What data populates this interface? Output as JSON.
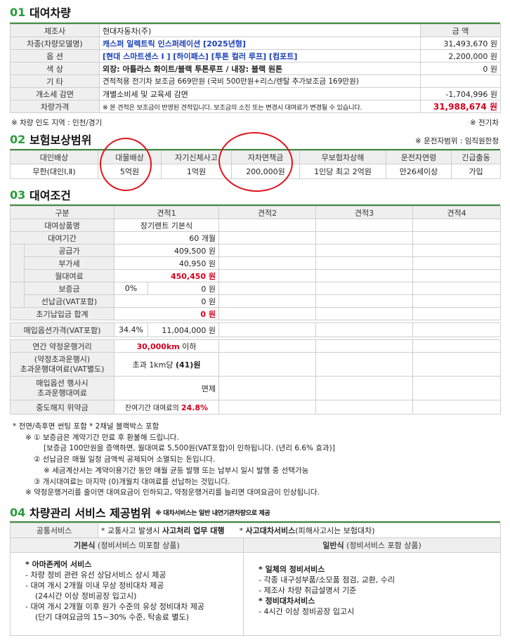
{
  "sec1": {
    "num": "01",
    "title": "대여차량",
    "rows": [
      {
        "label": "제조사",
        "value": "현대자동차(주)",
        "amount": "금 액"
      },
      {
        "label": "차종(차량모델명)",
        "value": "캐스퍼 일렉트릭 인스퍼레이션 [2025년형]",
        "amount": "31,493,670 원"
      },
      {
        "label": "옵 션",
        "value": "[현대 스마트센스 I ] [하이패스] [투톤 컬러 루프] [컴포트]",
        "amount": "2,200,000 원"
      },
      {
        "label": "색 상",
        "value": "외장: 아틀라스 화이트/블랙 투톤루프 / 내장: 블랙 원톤",
        "amount": "0 원"
      },
      {
        "label": "기 타",
        "value": "견적적용 전기차 보조금 669만원 (국비 500만원+리스/렌탈 추가보조금 169만원)",
        "amount": ""
      },
      {
        "label": "개소세 감면",
        "value": "개별소비세 및 교육세 감면",
        "amount": "-1,704,996 원"
      },
      {
        "label": "차량가격",
        "value": "※ 본 견적은 보조금이 반영된 견적입니다. 보조금의 소진 또는 변경시 대여료가 변경될 수 있습니다.",
        "amount": "31,988,674 원"
      }
    ],
    "note_left": "※ 차량 인도 지역 : 인천/경기",
    "note_right": "※ 전기차"
  },
  "sec2": {
    "num": "02",
    "title": "보험보상범위",
    "note_right": "※ 운전자범위 : 임직원한정",
    "headers": [
      "대인배상",
      "대물배상",
      "자기신체사고",
      "자차면책금",
      "무보험차상해",
      "운전자연령",
      "긴급출동"
    ],
    "values": [
      "무한(대인Ⅰ,Ⅱ)",
      "5억원",
      "1억원",
      "200,000원",
      "1인당 최고 2억원",
      "만26세이상",
      "가입"
    ]
  },
  "sec3": {
    "num": "03",
    "title": "대여조건",
    "headers": [
      "구분",
      "견적1",
      "견적2",
      "견적3",
      "견적4"
    ],
    "product_label": "대여상품명",
    "product": "장기렌트 기본식",
    "period_label": "대여기간",
    "period": "60 개월",
    "supply_label": "공급가",
    "supply": "409,500 원",
    "vat_label": "부가세",
    "vat": "40,950 원",
    "monthly_label": "월대여료",
    "monthly": "450,450 원",
    "deposit_label": "보증금",
    "deposit_pct": "0%",
    "deposit": "0 원",
    "prepay_label": "선납금(VAT포함)",
    "prepay": "0 원",
    "initial_label": "초기납입금 합계",
    "initial": "0 원",
    "buyout_label": "매입옵션가격(VAT포함)",
    "buyout_pct": "34.4%",
    "buyout": "11,004,000 원",
    "mileage_label": "연간 약정운행거리",
    "mileage": "30,000km",
    "mileage_suffix": " 이하",
    "excess_label1": "(약정초과운행시)",
    "excess_label2": "초과운행대여료(VAT별도)",
    "excess_prefix": "초과 1km당 ",
    "excess": "(41)원",
    "buyout_excess_label1": "매입옵션 행사시",
    "buyout_excess_label2": "초과운행대여료",
    "buyout_excess": "면제",
    "penalty_label": "중도해지 위약금",
    "penalty_prefix": "잔여기간 대여료의 ",
    "penalty": "24.8%"
  },
  "notes": [
    "* 전면/측후면 썬팅 포함  * 2채널 블랙박스 포함",
    "※ ① 보증금은 계약기간 만료 후 환불해 드립니다.",
    "[보증금 100만원을 증액하면, 월대여료 5,500원(VAT포함)이 인하됩니다. (년리 6.6% 효과)]",
    "② 선납금은 매월 일정 금액씩 공제되어 소멸되는 돈입니다.",
    "※ 세금계산서는 계약이용기간 동안 매월 균등 발행 또는 납부시 일시 발행 중 선택가능",
    "③ 개시대여료는 마지막 (0)개월치 대여료를 선납하는 것입니다.",
    "※ 약정운행거리를 줄이면 대여요금이 인하되고, 약정운행거리를 늘리면 대여요금이 인상됩니다."
  ],
  "sec4": {
    "num": "04",
    "title": "차량관리 서비스 제공범위",
    "subtitle": "※ 대차서비스는 일반 내연기관차량으로 제공",
    "common_label": "공통서비스",
    "common_1_pre": "* 교통사고 발생시 ",
    "common_1_bold": "사고처리 업무 대행",
    "common_2_pre": "* ",
    "common_2_bold": "사고대차서비스",
    "common_2_post": "(피해사고시는 보험대차)",
    "basic_head_bold": "기본식",
    "basic_head": " (정비서비스 미포함 상품)",
    "general_head_bold": "일반식",
    "general_head": " (정비서비스 포함 상품)",
    "basic_items": [
      {
        "text": "* 아마존케어 서비스",
        "bold": true
      },
      {
        "text": " - 차량 정비 관련 유선 상담서비스 상시 제공",
        "bold": false
      },
      {
        "text": " - 대여 개시 2개월 이내 무상 정비대차 제공",
        "bold": false
      },
      {
        "text": "    (24시간 이상 정비공장 입고시)",
        "bold": false
      },
      {
        "text": " - 대여 개시 2개월 이후 원가 수준의 유상 정비대차 제공",
        "bold": false
      },
      {
        "text": "    (단기 대여요금의 15~30% 수준, 탁송료 별도)",
        "bold": false
      }
    ],
    "general_items": [
      {
        "text": "* 일체의 정비서비스",
        "bold": true
      },
      {
        "text": " - 각종 내구성부품/소모품 점검, 교환, 수리",
        "bold": false
      },
      {
        "text": " - 제조사 차량 취급설명서 기준",
        "bold": false
      },
      {
        "text": "* 정비대차서비스",
        "bold": true
      },
      {
        "text": " - 4시간 이상 정비공장 입고시",
        "bold": false
      }
    ]
  }
}
